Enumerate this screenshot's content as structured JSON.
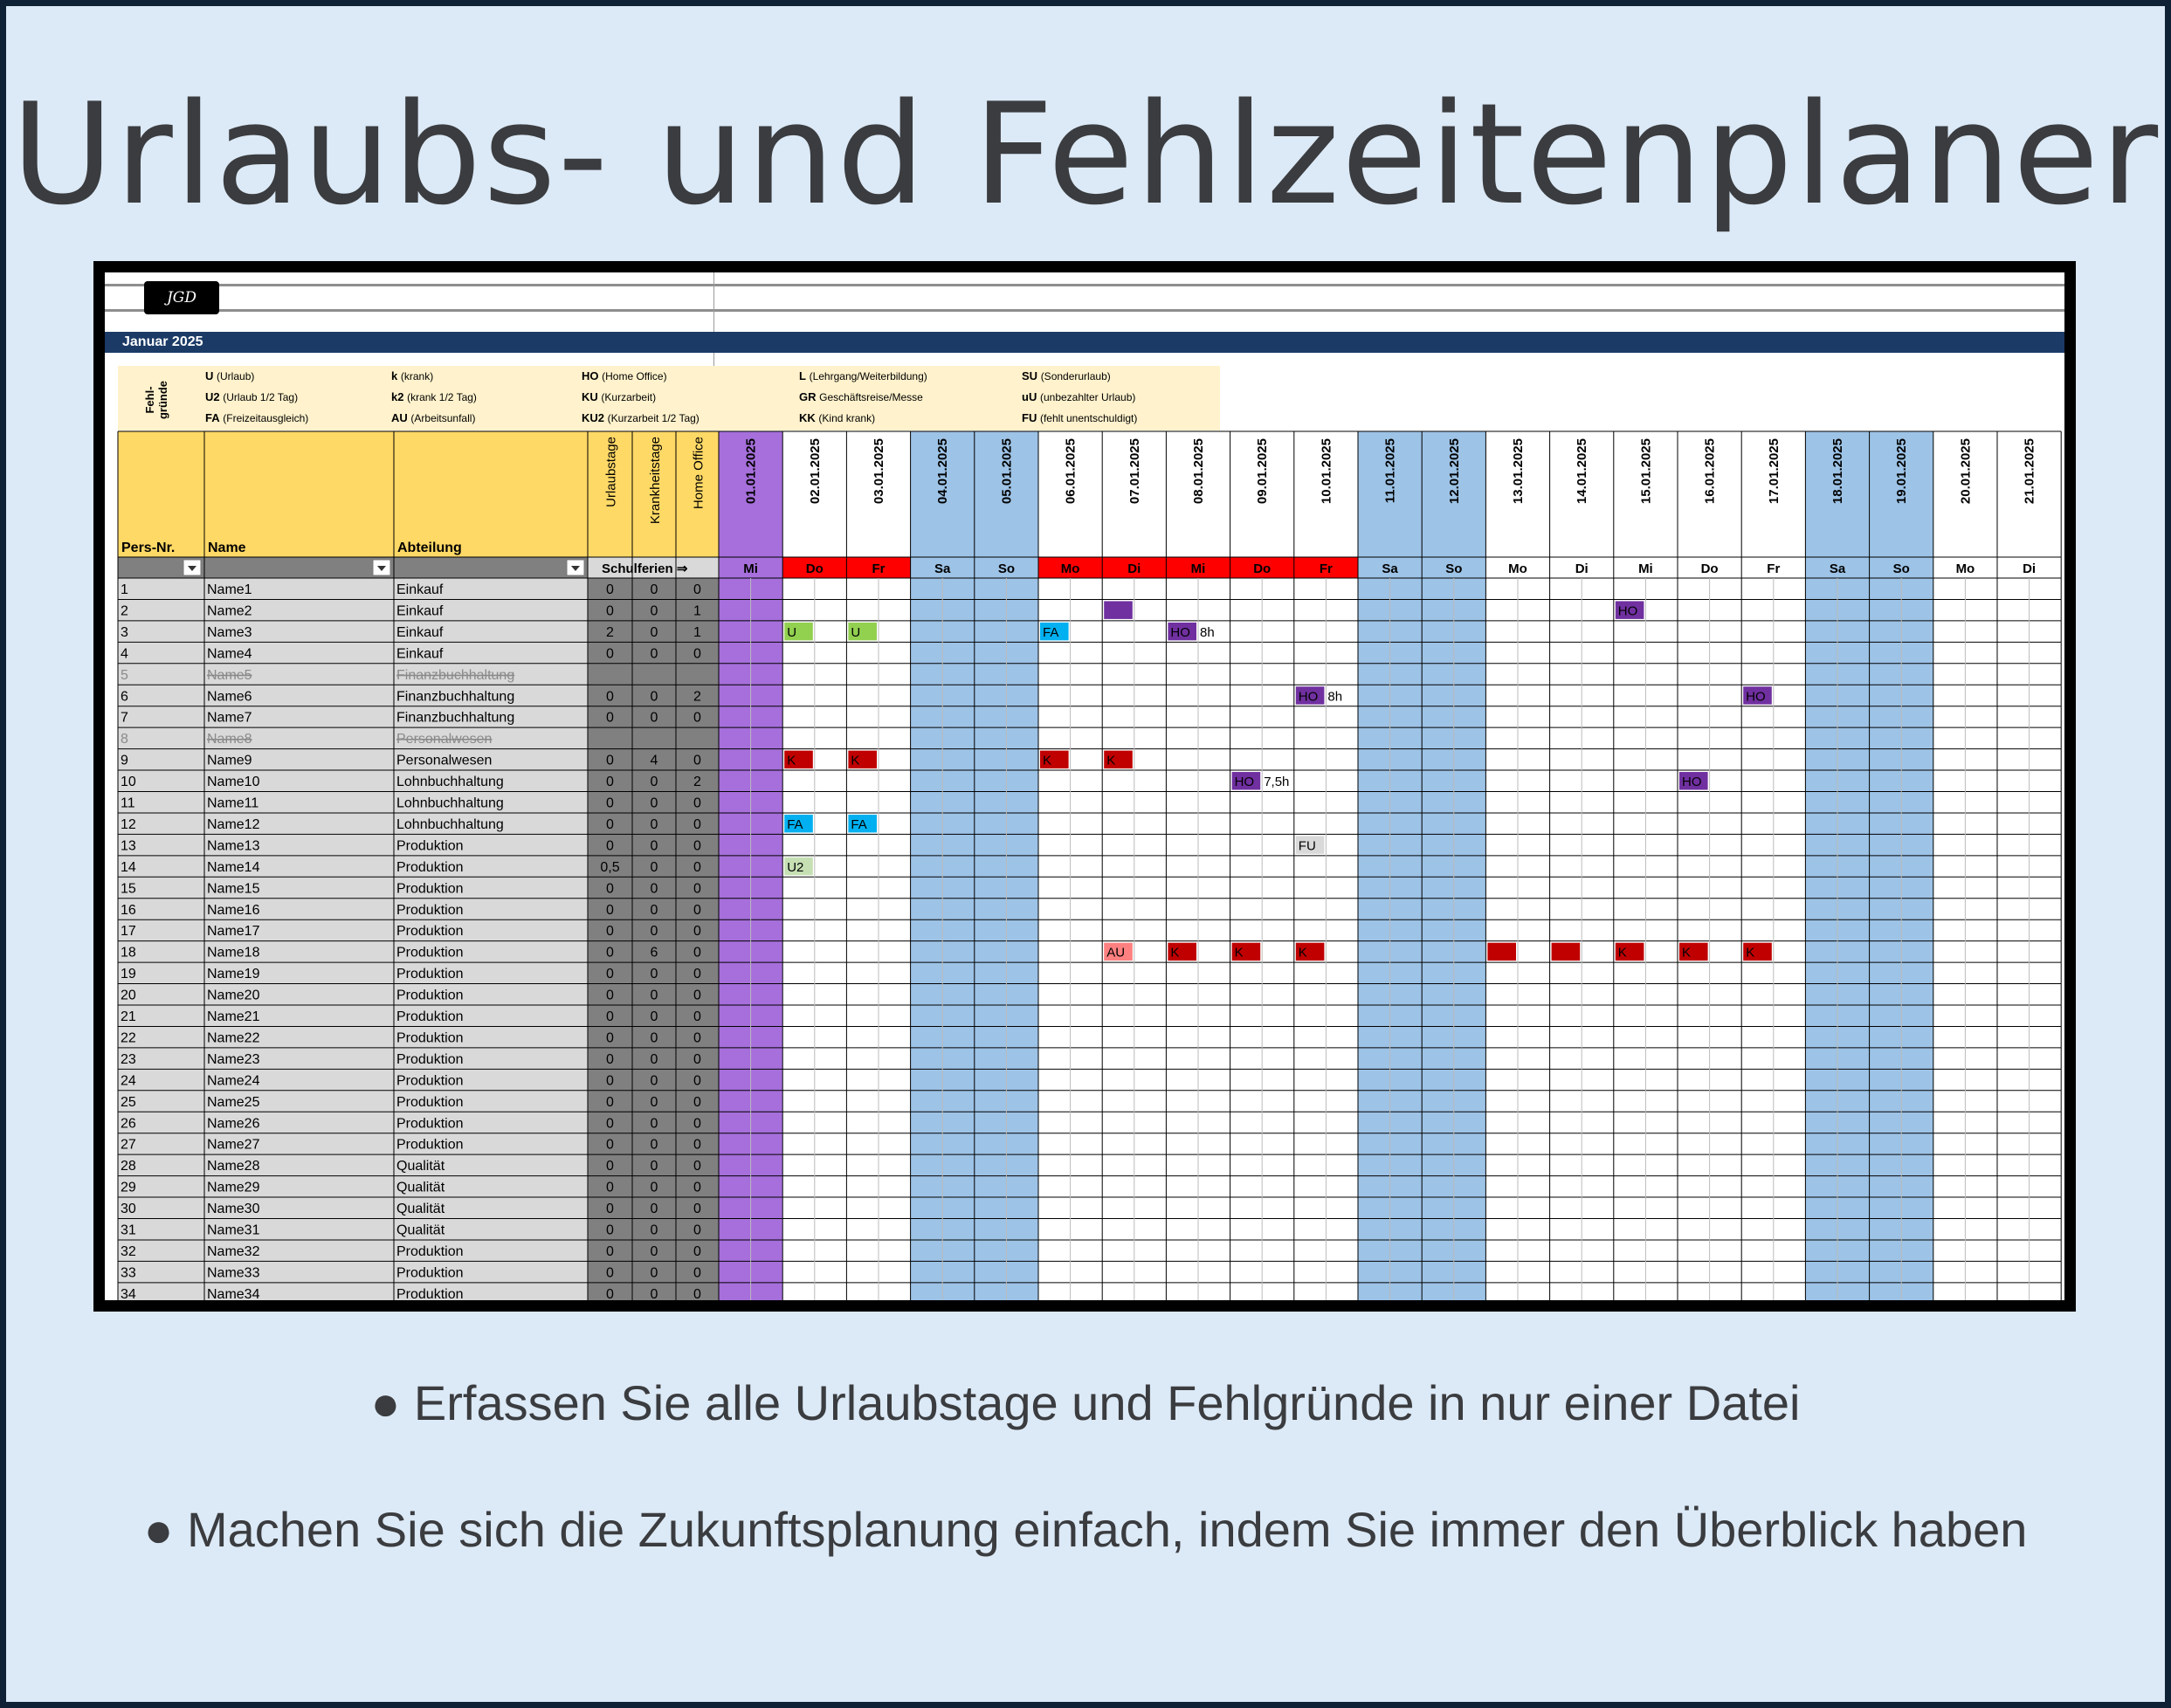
{
  "title": "Urlaubs- und Fehlzeitenplaner",
  "logo_text": "JGD",
  "month_label": "Januar 2025",
  "legend": {
    "heading": "Fehl-\ngründe",
    "col1": [
      [
        "U",
        "(Urlaub)"
      ],
      [
        "U2",
        "(Urlaub 1/2 Tag)"
      ],
      [
        "FA",
        "(Freizeitausgleich)"
      ]
    ],
    "col2": [
      [
        "k",
        "(krank)"
      ],
      [
        "k2",
        "(krank 1/2 Tag)"
      ],
      [
        "AU",
        "(Arbeitsunfall)"
      ]
    ],
    "col3": [
      [
        "HO",
        "(Home Office)"
      ],
      [
        "KU",
        "(Kurzarbeit)"
      ],
      [
        "KU2",
        "(Kurzarbeit 1/2 Tag)"
      ]
    ],
    "col4": [
      [
        "L",
        "(Lehrgang/Weiterbildung)"
      ],
      [
        "GR",
        "Geschäftsreise/Messe"
      ],
      [
        "KK",
        "(Kind krank)"
      ]
    ],
    "col5": [
      [
        "SU",
        "(Sonderurlaub)"
      ],
      [
        "uU",
        "(unbezahlter Urlaub)"
      ],
      [
        "FU",
        "(fehlt unentschuldigt)"
      ]
    ]
  },
  "columns": {
    "pers_nr": "Pers-Nr.",
    "name": "Name",
    "abteilung": "Abteilung",
    "urlaubstage": "Urlaubstage",
    "krankheitstage": "Krankheitstage",
    "home_office": "Home Office",
    "schulferien": "Schulferien ⇒"
  },
  "days": [
    {
      "date": "01.01.2025",
      "wd": "Mi",
      "type": "holiday"
    },
    {
      "date": "02.01.2025",
      "wd": "Do",
      "type": "ferien"
    },
    {
      "date": "03.01.2025",
      "wd": "Fr",
      "type": "ferien"
    },
    {
      "date": "04.01.2025",
      "wd": "Sa",
      "type": "weekend"
    },
    {
      "date": "05.01.2025",
      "wd": "So",
      "type": "weekend"
    },
    {
      "date": "06.01.2025",
      "wd": "Mo",
      "type": "ferien"
    },
    {
      "date": "07.01.2025",
      "wd": "Di",
      "type": "ferien"
    },
    {
      "date": "08.01.2025",
      "wd": "Mi",
      "type": "ferien"
    },
    {
      "date": "09.01.2025",
      "wd": "Do",
      "type": "ferien"
    },
    {
      "date": "10.01.2025",
      "wd": "Fr",
      "type": "ferien"
    },
    {
      "date": "11.01.2025",
      "wd": "Sa",
      "type": "weekend"
    },
    {
      "date": "12.01.2025",
      "wd": "So",
      "type": "weekend"
    },
    {
      "date": "13.01.2025",
      "wd": "Mo",
      "type": "work"
    },
    {
      "date": "14.01.2025",
      "wd": "Di",
      "type": "work"
    },
    {
      "date": "15.01.2025",
      "wd": "Mi",
      "type": "work"
    },
    {
      "date": "16.01.2025",
      "wd": "Do",
      "type": "work"
    },
    {
      "date": "17.01.2025",
      "wd": "Fr",
      "type": "work"
    },
    {
      "date": "18.01.2025",
      "wd": "Sa",
      "type": "weekend"
    },
    {
      "date": "19.01.2025",
      "wd": "So",
      "type": "weekend"
    },
    {
      "date": "20.01.2025",
      "wd": "Mo",
      "type": "work"
    },
    {
      "date": "21.01.2025",
      "wd": "Di",
      "type": "work"
    }
  ],
  "rows": [
    {
      "nr": "1",
      "name": "Name1",
      "abt": "Einkauf",
      "u": "0",
      "k": "0",
      "ho": "0"
    },
    {
      "nr": "2",
      "name": "Name2",
      "abt": "Einkauf",
      "u": "0",
      "k": "0",
      "ho": "1"
    },
    {
      "nr": "3",
      "name": "Name3",
      "abt": "Einkauf",
      "u": "2",
      "k": "0",
      "ho": "1"
    },
    {
      "nr": "4",
      "name": "Name4",
      "abt": "Einkauf",
      "u": "0",
      "k": "0",
      "ho": "0"
    },
    {
      "nr": "5",
      "name": "Name5",
      "abt": "Finanzbuchhaltung",
      "u": "",
      "k": "",
      "ho": "",
      "inactive": true
    },
    {
      "nr": "6",
      "name": "Name6",
      "abt": "Finanzbuchhaltung",
      "u": "0",
      "k": "0",
      "ho": "2"
    },
    {
      "nr": "7",
      "name": "Name7",
      "abt": "Finanzbuchhaltung",
      "u": "0",
      "k": "0",
      "ho": "0"
    },
    {
      "nr": "8",
      "name": "Name8",
      "abt": "Personalwesen",
      "u": "",
      "k": "",
      "ho": "",
      "inactive": true
    },
    {
      "nr": "9",
      "name": "Name9",
      "abt": "Personalwesen",
      "u": "0",
      "k": "4",
      "ho": "0"
    },
    {
      "nr": "10",
      "name": "Name10",
      "abt": "Lohnbuchhaltung",
      "u": "0",
      "k": "0",
      "ho": "2"
    },
    {
      "nr": "11",
      "name": "Name11",
      "abt": "Lohnbuchhaltung",
      "u": "0",
      "k": "0",
      "ho": "0"
    },
    {
      "nr": "12",
      "name": "Name12",
      "abt": "Lohnbuchhaltung",
      "u": "0",
      "k": "0",
      "ho": "0"
    },
    {
      "nr": "13",
      "name": "Name13",
      "abt": "Produktion",
      "u": "0",
      "k": "0",
      "ho": "0"
    },
    {
      "nr": "14",
      "name": "Name14",
      "abt": "Produktion",
      "u": "0,5",
      "k": "0",
      "ho": "0"
    },
    {
      "nr": "15",
      "name": "Name15",
      "abt": "Produktion",
      "u": "0",
      "k": "0",
      "ho": "0"
    },
    {
      "nr": "16",
      "name": "Name16",
      "abt": "Produktion",
      "u": "0",
      "k": "0",
      "ho": "0"
    },
    {
      "nr": "17",
      "name": "Name17",
      "abt": "Produktion",
      "u": "0",
      "k": "0",
      "ho": "0"
    },
    {
      "nr": "18",
      "name": "Name18",
      "abt": "Produktion",
      "u": "0",
      "k": "6",
      "ho": "0"
    },
    {
      "nr": "19",
      "name": "Name19",
      "abt": "Produktion",
      "u": "0",
      "k": "0",
      "ho": "0"
    },
    {
      "nr": "20",
      "name": "Name20",
      "abt": "Produktion",
      "u": "0",
      "k": "0",
      "ho": "0"
    },
    {
      "nr": "21",
      "name": "Name21",
      "abt": "Produktion",
      "u": "0",
      "k": "0",
      "ho": "0"
    },
    {
      "nr": "22",
      "name": "Name22",
      "abt": "Produktion",
      "u": "0",
      "k": "0",
      "ho": "0"
    },
    {
      "nr": "23",
      "name": "Name23",
      "abt": "Produktion",
      "u": "0",
      "k": "0",
      "ho": "0"
    },
    {
      "nr": "24",
      "name": "Name24",
      "abt": "Produktion",
      "u": "0",
      "k": "0",
      "ho": "0"
    },
    {
      "nr": "25",
      "name": "Name25",
      "abt": "Produktion",
      "u": "0",
      "k": "0",
      "ho": "0"
    },
    {
      "nr": "26",
      "name": "Name26",
      "abt": "Produktion",
      "u": "0",
      "k": "0",
      "ho": "0"
    },
    {
      "nr": "27",
      "name": "Name27",
      "abt": "Produktion",
      "u": "0",
      "k": "0",
      "ho": "0"
    },
    {
      "nr": "28",
      "name": "Name28",
      "abt": "Qualität",
      "u": "0",
      "k": "0",
      "ho": "0"
    },
    {
      "nr": "29",
      "name": "Name29",
      "abt": "Qualität",
      "u": "0",
      "k": "0",
      "ho": "0"
    },
    {
      "nr": "30",
      "name": "Name30",
      "abt": "Qualität",
      "u": "0",
      "k": "0",
      "ho": "0"
    },
    {
      "nr": "31",
      "name": "Name31",
      "abt": "Qualität",
      "u": "0",
      "k": "0",
      "ho": "0"
    },
    {
      "nr": "32",
      "name": "Name32",
      "abt": "Produktion",
      "u": "0",
      "k": "0",
      "ho": "0"
    },
    {
      "nr": "33",
      "name": "Name33",
      "abt": "Produktion",
      "u": "0",
      "k": "0",
      "ho": "0"
    },
    {
      "nr": "34",
      "name": "Name34",
      "abt": "Produktion",
      "u": "0",
      "k": "0",
      "ho": "0"
    }
  ],
  "entries": [
    {
      "row": 2,
      "day": 7,
      "code": "",
      "color": "#7030a0"
    },
    {
      "row": 2,
      "day": 15,
      "code": "HO",
      "color": "#7030a0"
    },
    {
      "row": 3,
      "day": 2,
      "code": "U",
      "color": "#92d050"
    },
    {
      "row": 3,
      "day": 3,
      "code": "U",
      "color": "#92d050"
    },
    {
      "row": 3,
      "day": 6,
      "code": "FA",
      "color": "#00b0f0"
    },
    {
      "row": 3,
      "day": 8,
      "code": "HO",
      "color": "#7030a0",
      "note": "8h"
    },
    {
      "row": 6,
      "day": 10,
      "code": "HO",
      "color": "#7030a0",
      "note": "8h"
    },
    {
      "row": 6,
      "day": 17,
      "code": "HO",
      "color": "#7030a0"
    },
    {
      "row": 9,
      "day": 2,
      "code": "K",
      "color": "#c00000"
    },
    {
      "row": 9,
      "day": 3,
      "code": "K",
      "color": "#c00000"
    },
    {
      "row": 9,
      "day": 6,
      "code": "K",
      "color": "#c00000"
    },
    {
      "row": 9,
      "day": 7,
      "code": "K",
      "color": "#c00000"
    },
    {
      "row": 10,
      "day": 9,
      "code": "HO",
      "color": "#7030a0",
      "note": "7,5h"
    },
    {
      "row": 10,
      "day": 16,
      "code": "HO",
      "color": "#7030a0"
    },
    {
      "row": 12,
      "day": 2,
      "code": "FA",
      "color": "#00b0f0"
    },
    {
      "row": 12,
      "day": 3,
      "code": "FA",
      "color": "#00b0f0"
    },
    {
      "row": 13,
      "day": 10,
      "code": "FU",
      "color": "#d9d9d9"
    },
    {
      "row": 14,
      "day": 2,
      "code": "U2",
      "color": "#c6e0b4"
    },
    {
      "row": 18,
      "day": 7,
      "code": "AU",
      "color": "#ff8080"
    },
    {
      "row": 18,
      "day": 8,
      "code": "K",
      "color": "#c00000"
    },
    {
      "row": 18,
      "day": 9,
      "code": "K",
      "color": "#c00000"
    },
    {
      "row": 18,
      "day": 10,
      "code": "K",
      "color": "#c00000"
    },
    {
      "row": 18,
      "day": 13,
      "code": "",
      "color": "#c00000"
    },
    {
      "row": 18,
      "day": 14,
      "code": "",
      "color": "#c00000"
    },
    {
      "row": 18,
      "day": 15,
      "code": "K",
      "color": "#c00000"
    },
    {
      "row": 18,
      "day": 16,
      "code": "K",
      "color": "#c00000"
    },
    {
      "row": 18,
      "day": 17,
      "code": "K",
      "color": "#c00000"
    }
  ],
  "colors": {
    "header_yellow": "#ffd966",
    "legend_bg": "#fff2cc",
    "holiday": "#a66fdb",
    "ferien_red": "#ff0000",
    "weekend_blue": "#9dc3e6",
    "month_bar": "#1b3a66",
    "gray_cell": "#d9d9d9",
    "dark_gray_cell": "#808080"
  },
  "bullets": [
    "● Erfassen Sie alle Urlaubstage und Fehlgründe in nur einer Datei",
    "● Machen Sie sich die Zukunftsplanung einfach, indem Sie immer den Überblick haben"
  ]
}
